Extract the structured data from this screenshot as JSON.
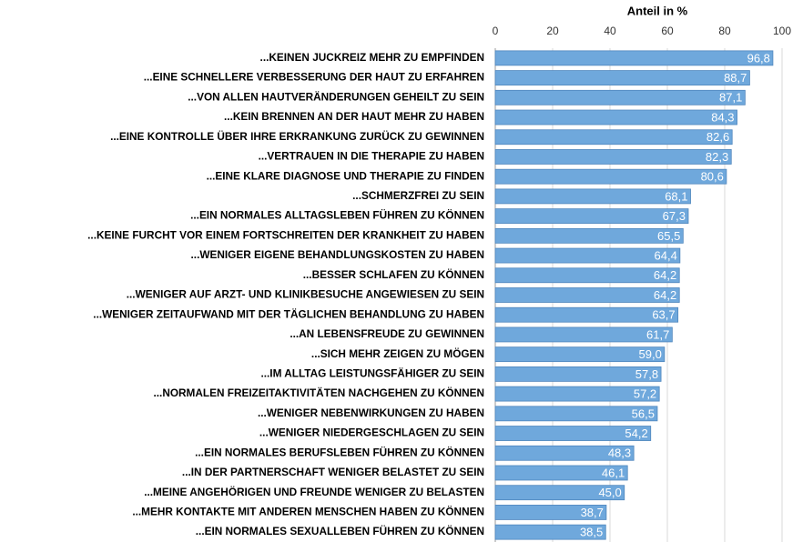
{
  "chart_data": {
    "type": "bar",
    "orientation": "horizontal",
    "x_label": "Anteil in %",
    "categories": [
      "...KEINEN JUCKREIZ MEHR ZU EMPFINDEN",
      "...EINE SCHNELLERE VERBESSERUNG DER HAUT ZU ERFAHREN",
      "...VON ALLEN HAUTVERÄNDERUNGEN GEHEILT ZU SEIN",
      "...KEIN BRENNEN AN DER HAUT MEHR ZU HABEN",
      "...EINE KONTROLLE ÜBER IHRE ERKRANKUNG ZURÜCK ZU GEWINNEN",
      "...VERTRAUEN IN DIE THERAPIE ZU HABEN",
      "...EINE KLARE DIAGNOSE UND THERAPIE ZU FINDEN",
      "...SCHMERZFREI ZU SEIN",
      "...EIN NORMALES ALLTAGSLEBEN FÜHREN ZU KÖNNEN",
      "...KEINE FURCHT VOR EINEM FORTSCHREITEN DER KRANKHEIT ZU HABEN",
      "...WENIGER EIGENE BEHANDLUNGSKOSTEN ZU HABEN",
      "...BESSER SCHLAFEN ZU KÖNNEN",
      "...WENIGER AUF ARZT- UND KLINIKBESUCHE ANGEWIESEN ZU SEIN",
      "...WENIGER ZEITAUFWAND MIT DER TÄGLICHEN BEHANDLUNG ZU HABEN",
      "...AN LEBENSFREUDE ZU GEWINNEN",
      "...SICH MEHR ZEIGEN ZU MÖGEN",
      "...IM ALLTAG LEISTUNGSFÄHIGER ZU SEIN",
      "...NORMALEN FREIZEITAKTIVITÄTEN NACHGEHEN ZU KÖNNEN",
      "...WENIGER NEBENWIRKUNGEN ZU HABEN",
      "...WENIGER NIEDERGESCHLAGEN ZU SEIN",
      "...EIN NORMALES BERUFSLEBEN FÜHREN ZU KÖNNEN",
      "...IN DER PARTNERSCHAFT WENIGER BELASTET ZU SEIN",
      "...MEINE ANGEHÖRIGEN UND FREUNDE WENIGER ZU BELASTEN",
      "...MEHR KONTAKTE MIT ANDEREN MENSCHEN HABEN ZU KÖNNEN",
      "...EIN NORMALES SEXUALLEBEN FÜHREN ZU KÖNNEN"
    ],
    "values": [
      96.8,
      88.7,
      87.1,
      84.3,
      82.6,
      82.3,
      80.6,
      68.1,
      67.3,
      65.5,
      64.4,
      64.2,
      64.2,
      63.7,
      61.7,
      59.0,
      57.8,
      57.2,
      56.5,
      54.2,
      48.3,
      46.1,
      45.0,
      38.7,
      38.5
    ],
    "value_labels": [
      "96,8",
      "88,7",
      "87,1",
      "84,3",
      "82,6",
      "82,3",
      "80,6",
      "68,1",
      "67,3",
      "65,5",
      "64,4",
      "64,2",
      "64,2",
      "63,7",
      "61,7",
      "59,0",
      "57,8",
      "57,2",
      "56,5",
      "54,2",
      "48,3",
      "46,1",
      "45,0",
      "38,7",
      "38,5"
    ],
    "color": "#6fa8dc",
    "xlim": [
      0,
      100
    ],
    "xticks": [
      0,
      20,
      40,
      60,
      80,
      100
    ],
    "grid": true
  }
}
